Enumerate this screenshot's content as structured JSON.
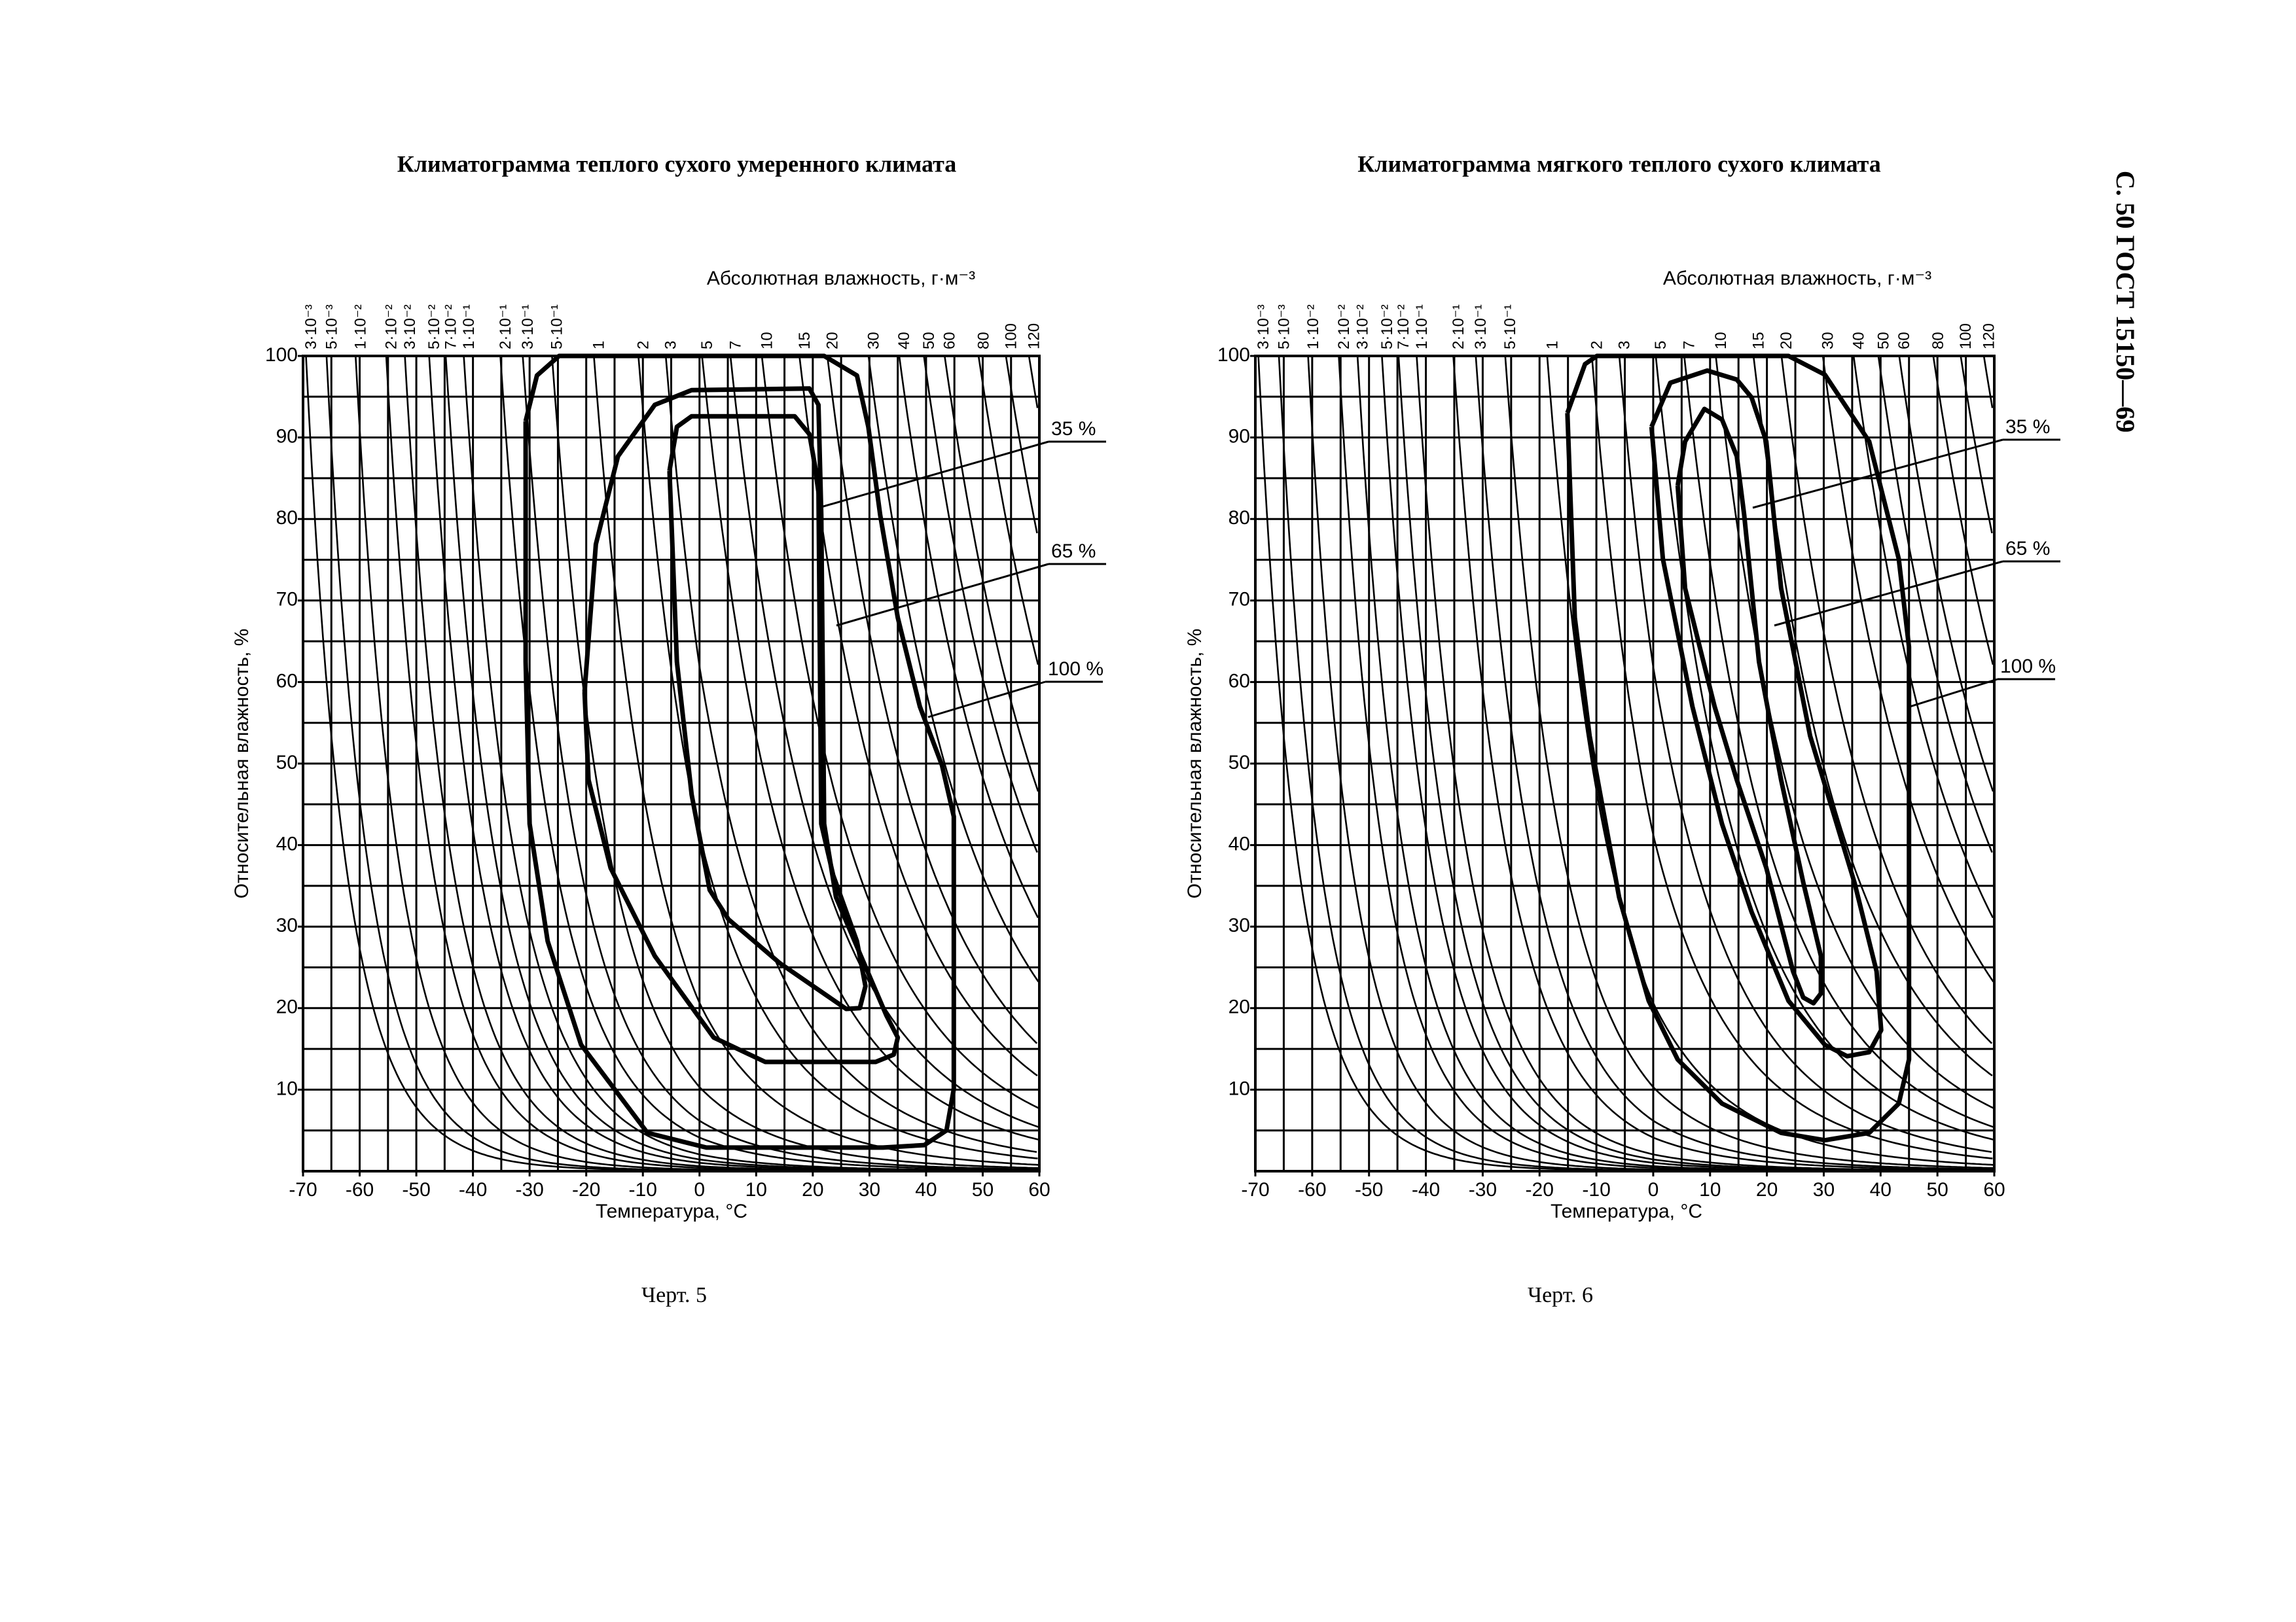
{
  "header": "С. 50 ГОСТ 15150—69",
  "chart_data": [
    {
      "type": "line",
      "title": "Климатограмма теплого сухого умеренного климата",
      "top_label": "Абсолютная влажность, г·м⁻³",
      "x_label": "Температура, °С",
      "y_label": "Относительная влажность, %",
      "caption": "Черт. 5",
      "xlim": [
        -70,
        60
      ],
      "ylim": [
        0,
        100
      ],
      "xticks": [
        -70,
        -60,
        -50,
        -40,
        -30,
        -20,
        -10,
        0,
        10,
        20,
        30,
        40,
        50,
        60
      ],
      "yticks": [
        10,
        20,
        30,
        40,
        50,
        60,
        70,
        80,
        90,
        100
      ],
      "xgrid": [
        -70,
        -65,
        -60,
        -55,
        -50,
        -45,
        -40,
        -35,
        -30,
        -25,
        -20,
        -15,
        -10,
        -5,
        0,
        5,
        10,
        15,
        20,
        25,
        30,
        35,
        40,
        45,
        50,
        55,
        60
      ],
      "ygrid": [
        0,
        5,
        10,
        15,
        20,
        25,
        30,
        35,
        40,
        45,
        50,
        55,
        60,
        65,
        70,
        75,
        80,
        85,
        90,
        95,
        100
      ],
      "isolines": [
        {
          "value": 0.003,
          "label": "3·10⁻³"
        },
        {
          "value": 0.005,
          "label": "5·10⁻³"
        },
        {
          "value": 0.01,
          "label": "1·10⁻²"
        },
        {
          "value": 0.02,
          "label": "2·10⁻²"
        },
        {
          "value": 0.03,
          "label": "3·10⁻²"
        },
        {
          "value": 0.05,
          "label": "5·10⁻²"
        },
        {
          "value": 0.07,
          "label": "7·10⁻²"
        },
        {
          "value": 0.1,
          "label": "1·10⁻¹"
        },
        {
          "value": 0.2,
          "label": "2·10⁻¹"
        },
        {
          "value": 0.3,
          "label": "3·10⁻¹"
        },
        {
          "value": 0.5,
          "label": "5·10⁻¹"
        },
        1,
        2,
        3,
        5,
        7,
        10,
        15,
        20,
        30,
        40,
        50,
        60,
        80,
        100,
        120
      ],
      "series": [
        {
          "name": "35 %",
          "color": "#000000",
          "x": [
            -5.3,
            -4,
            -1.4,
            16.8,
            19.4,
            21,
            21.5,
            23.6,
            27.8,
            29.3,
            28.3,
            25.9,
            14.2,
            5.1,
            1.8,
            -1.4,
            -4,
            -5.3
          ],
          "values": [
            85.9,
            91.3,
            92.6,
            92.6,
            90.4,
            84.1,
            42.6,
            36.3,
            28.2,
            22.7,
            20,
            19.9,
            25.5,
            30.9,
            34.5,
            46.2,
            62.5,
            85.9
          ]
        },
        {
          "name": "65 %",
          "color": "#000000",
          "x": [
            -20.3,
            -18.3,
            -14.4,
            -7.9,
            -1.4,
            19.4,
            21,
            21.5,
            22,
            24.1,
            28.5,
            33,
            35,
            34.3,
            31.1,
            11.6,
            2.5,
            -7.9,
            -15.7,
            -19.6,
            -20.3
          ],
          "values": [
            58.8,
            76.9,
            87.7,
            94,
            95.8,
            96,
            94,
            80.5,
            42.6,
            33.6,
            26.4,
            19.1,
            16.4,
            14.3,
            13.4,
            13.4,
            16.4,
            26.4,
            37.2,
            48,
            58.8
          ]
        },
        {
          "name": "100 %",
          "color": "#000000",
          "x": [
            -30.7,
            -28.7,
            -24.8,
            22,
            27.8,
            29.8,
            31.9,
            35,
            38.9,
            42.8,
            44.9,
            44.9,
            43.6,
            39.7,
            32.4,
            1.2,
            -9.2,
            -20.9,
            -26.8,
            -30,
            -30.7,
            -30.7
          ],
          "values": [
            92,
            97.6,
            100,
            100,
            97.6,
            91.3,
            80.5,
            67.9,
            57,
            49.8,
            43.5,
            10.1,
            5,
            3.2,
            2.9,
            2.9,
            4.7,
            15.5,
            28.2,
            42.6,
            62.5,
            92
          ]
        }
      ]
    },
    {
      "type": "line",
      "title": "Климатограмма мягкого теплого сухого  климата",
      "top_label": "Абсолютная влажность, г·м⁻³",
      "x_label": "Температура, °С",
      "y_label": "Относительная влажность, %",
      "caption": "Черт. 6",
      "xlim": [
        -70,
        60
      ],
      "ylim": [
        0,
        100
      ],
      "xticks": [
        -70,
        -60,
        -50,
        -40,
        -30,
        -20,
        -10,
        0,
        10,
        20,
        30,
        40,
        50,
        60
      ],
      "yticks": [
        10,
        20,
        30,
        40,
        50,
        60,
        70,
        80,
        90,
        100
      ],
      "xgrid": [
        -70,
        -65,
        -60,
        -55,
        -50,
        -45,
        -40,
        -35,
        -30,
        -25,
        -20,
        -15,
        -10,
        -5,
        0,
        5,
        10,
        15,
        20,
        25,
        30,
        35,
        40,
        45,
        50,
        55,
        60
      ],
      "ygrid": [
        0,
        5,
        10,
        15,
        20,
        25,
        30,
        35,
        40,
        45,
        50,
        55,
        60,
        65,
        70,
        75,
        80,
        85,
        90,
        95,
        100
      ],
      "isolines": [
        {
          "value": 0.003,
          "label": "3·10⁻³"
        },
        {
          "value": 0.005,
          "label": "5·10⁻³"
        },
        {
          "value": 0.01,
          "label": "1·10⁻²"
        },
        {
          "value": 0.02,
          "label": "2·10⁻²"
        },
        {
          "value": 0.03,
          "label": "3·10⁻²"
        },
        {
          "value": 0.05,
          "label": "5·10⁻²"
        },
        {
          "value": 0.07,
          "label": "7·10⁻²"
        },
        {
          "value": 0.1,
          "label": "1·10⁻¹"
        },
        {
          "value": 0.2,
          "label": "2·10⁻¹"
        },
        {
          "value": 0.3,
          "label": "3·10⁻¹"
        },
        {
          "value": 0.5,
          "label": "5·10⁻¹"
        },
        1,
        2,
        3,
        5,
        7,
        10,
        15,
        20,
        30,
        40,
        50,
        60,
        80,
        100,
        120
      ],
      "series": [
        {
          "name": "35 %",
          "color": "#000000",
          "x": [
            4.3,
            5.6,
            9,
            12.1,
            14.7,
            16,
            18.6,
            22.5,
            26.4,
            29.5,
            29.5,
            28.2,
            26.4,
            24.6,
            19.9,
            14.7,
            10.8,
            5.6,
            4.3
          ],
          "values": [
            84.1,
            89.5,
            93.5,
            92.2,
            87.7,
            80.5,
            62.5,
            48,
            35.4,
            26.4,
            21.8,
            20.6,
            21.3,
            24.5,
            37.2,
            48,
            57,
            71.5,
            84.1
          ]
        },
        {
          "name": "65 %",
          "color": "#000000",
          "x": [
            -0.3,
            3,
            9.5,
            14.7,
            17.3,
            19.9,
            22.5,
            27.6,
            35.4,
            39.3,
            40.1,
            38,
            34.1,
            30.2,
            23.8,
            17.3,
            12.1,
            6.9,
            1.7,
            -0.3
          ],
          "values": [
            91.3,
            96.7,
            98.2,
            97.1,
            94.9,
            89.5,
            71.5,
            53.4,
            35.4,
            24.5,
            17.3,
            14.6,
            14.1,
            15.5,
            20.9,
            31.8,
            42.6,
            57,
            75.1,
            91.3
          ]
        },
        {
          "name": "100 %",
          "color": "#000000",
          "x": [
            -15.1,
            -12,
            -9.9,
            23.8,
            30.2,
            38,
            43.2,
            45,
            45,
            43.2,
            38,
            30.2,
            22.5,
            12.1,
            4.3,
            -0.8,
            -6,
            -11.2,
            -13.8,
            -15.1
          ],
          "values": [
            93,
            99,
            100,
            100,
            97.7,
            89.5,
            75.1,
            64.3,
            13.7,
            8.3,
            4.7,
            3.8,
            4.7,
            8.3,
            13.7,
            20.9,
            33.6,
            53.4,
            67.9,
            93
          ]
        }
      ]
    }
  ]
}
